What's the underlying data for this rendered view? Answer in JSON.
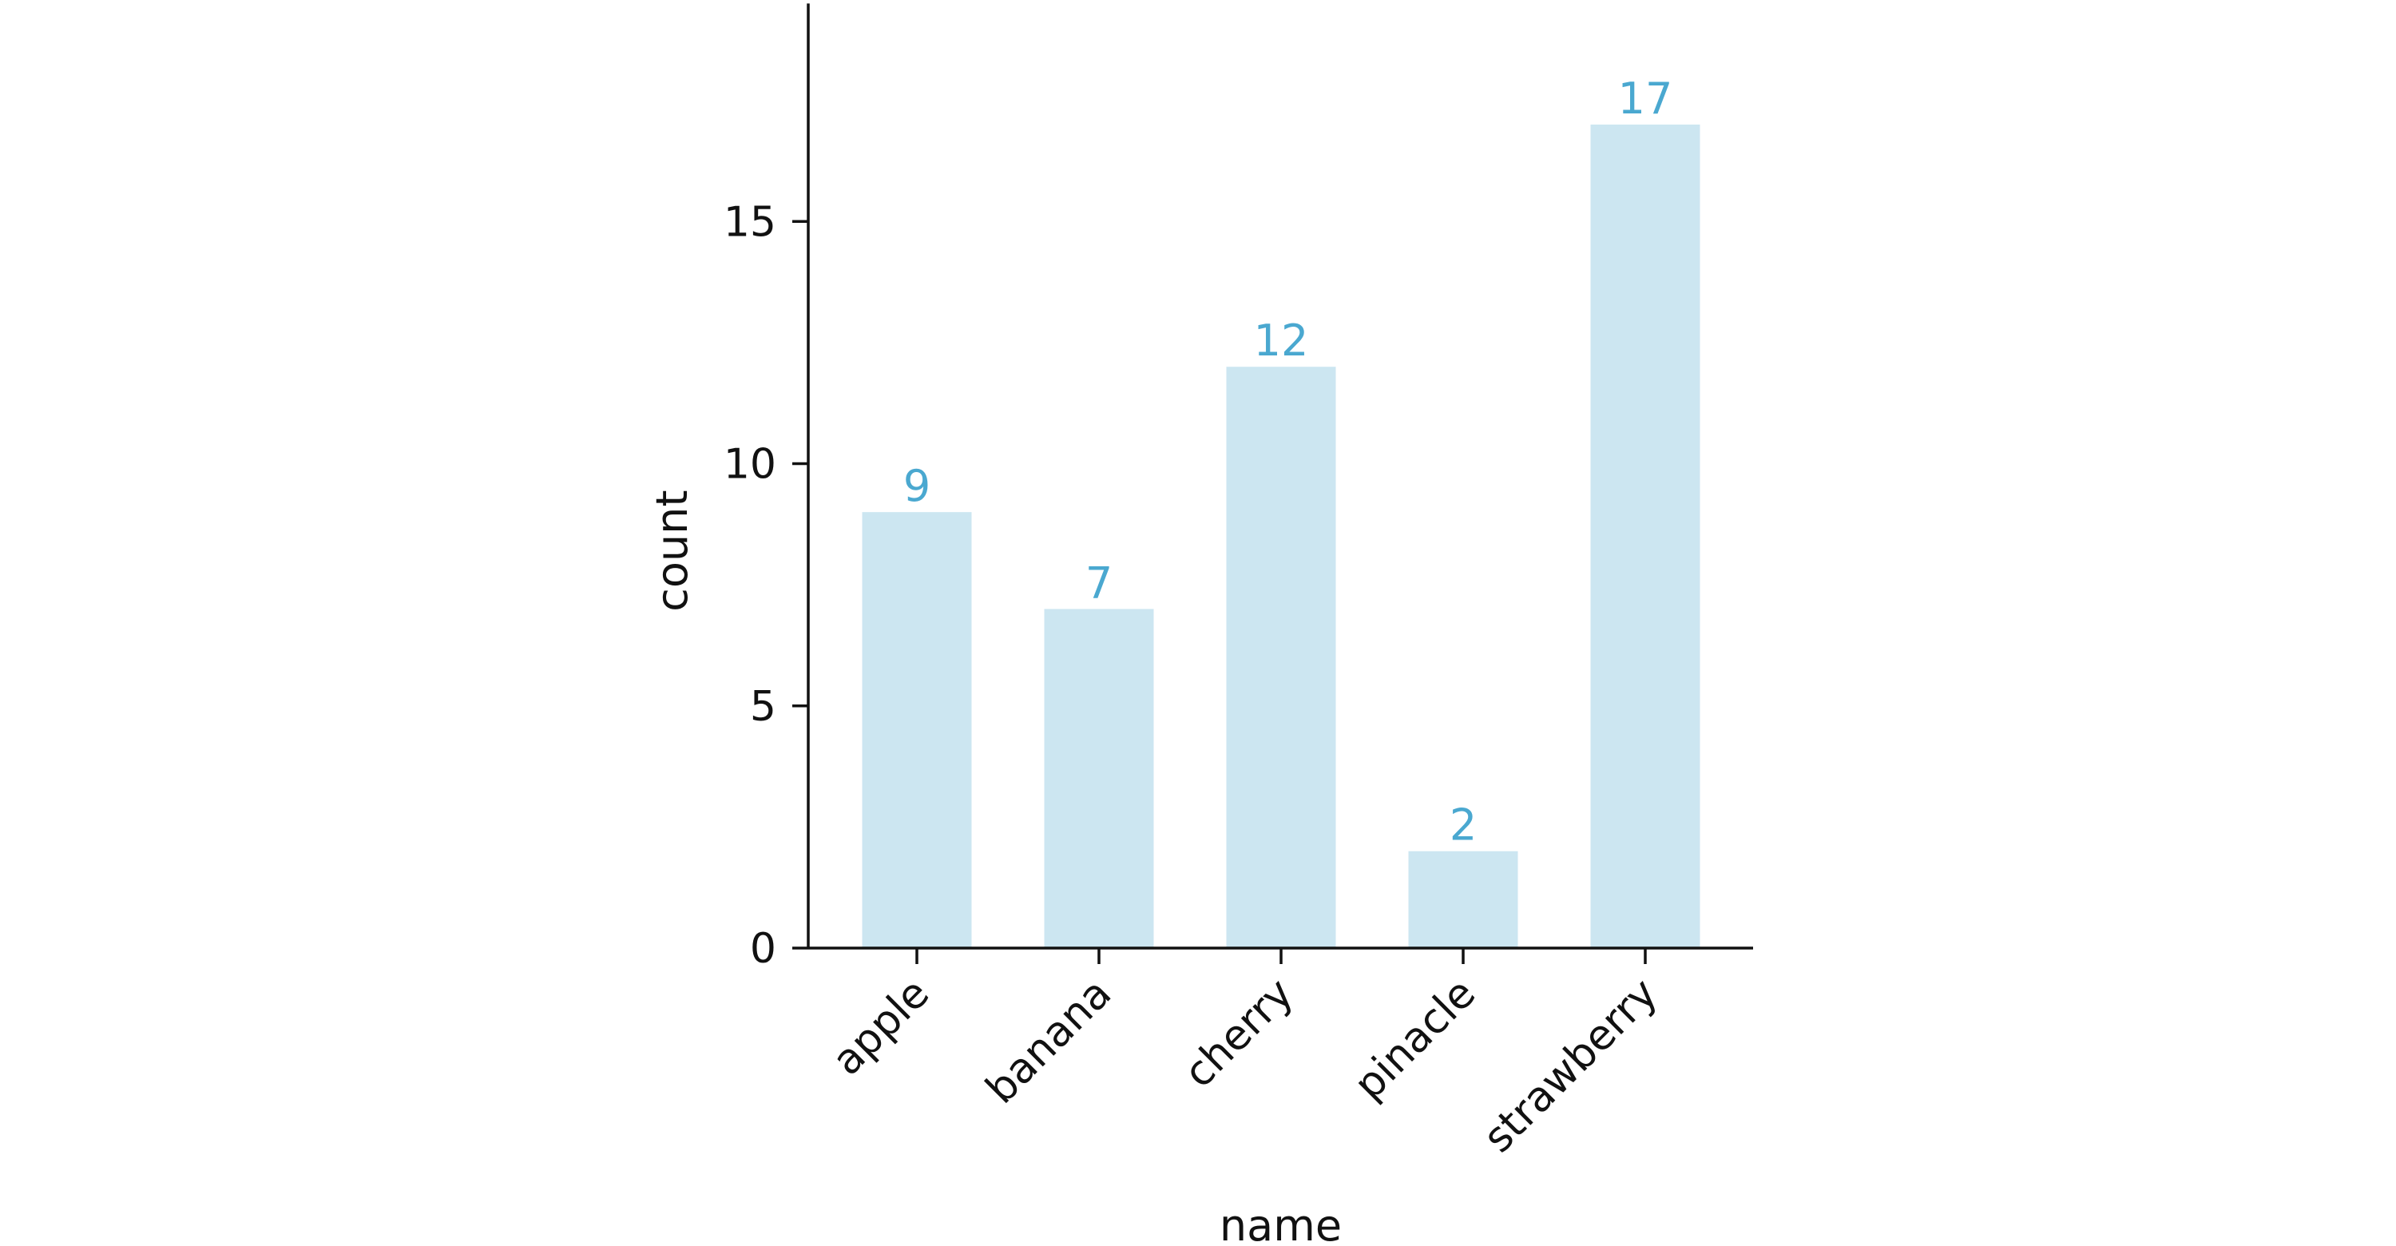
{
  "chart_data": {
    "type": "bar",
    "title": "",
    "xlabel": "name",
    "ylabel": "count",
    "categories": [
      "apple",
      "banana",
      "cherry",
      "pinacle",
      "strawberry"
    ],
    "values": [
      9,
      7,
      12,
      2,
      17
    ],
    "data_labels": [
      "9",
      "7",
      "12",
      "2",
      "17"
    ],
    "ylim": [
      0,
      19.5
    ],
    "yticks": [
      0,
      5,
      10,
      15
    ],
    "ytick_labels": [
      "0",
      "5",
      "10",
      "15"
    ],
    "grid": false,
    "legend": "none",
    "spines": "left-bottom",
    "xtick_rotation": "45deg",
    "colors": {
      "bar": "#cce6f1",
      "data_label": "#4aa8d0",
      "axis": "#111111"
    }
  }
}
